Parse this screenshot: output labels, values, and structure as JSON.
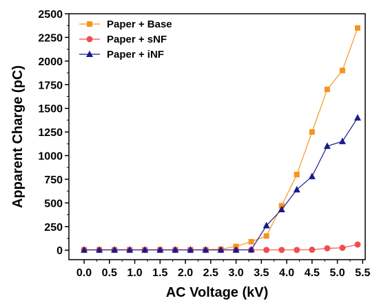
{
  "chart_data": {
    "type": "line",
    "title": "",
    "xlabel": "AC Voltage (kV)",
    "ylabel": "Apparent Charge (pC)",
    "xlim": [
      -0.3,
      5.55
    ],
    "ylim": [
      -100,
      2500
    ],
    "xticks": [
      "0.0",
      "0.5",
      "1.0",
      "1.5",
      "2.0",
      "2.5",
      "3.0",
      "3.5",
      "4.0",
      "4.5",
      "5.0",
      "5.5"
    ],
    "yticks": [
      "0",
      "250",
      "500",
      "750",
      "1000",
      "1250",
      "1500",
      "1750",
      "2000",
      "2250",
      "2500"
    ],
    "grid": false,
    "legend_position": "top-left",
    "x": [
      0.0,
      0.3,
      0.6,
      0.9,
      1.2,
      1.5,
      1.8,
      2.1,
      2.4,
      2.7,
      3.0,
      3.3,
      3.6,
      3.9,
      4.2,
      4.5,
      4.8,
      5.1,
      5.4
    ],
    "series": [
      {
        "name": "Paper + Base",
        "color": "#F7941D",
        "marker": "square",
        "values": [
          5,
          5,
          5,
          5,
          5,
          5,
          5,
          5,
          5,
          10,
          40,
          90,
          150,
          470,
          800,
          1250,
          1700,
          1900,
          2350
        ]
      },
      {
        "name": "Paper + sNF",
        "color": "#F04E4E",
        "marker": "circle",
        "values": [
          3,
          3,
          3,
          3,
          3,
          3,
          3,
          3,
          3,
          3,
          3,
          3,
          3,
          3,
          3,
          5,
          20,
          25,
          60
        ]
      },
      {
        "name": "Paper + iNF",
        "color": "#1A1A8C",
        "marker": "triangle",
        "values": [
          3,
          3,
          3,
          3,
          3,
          3,
          3,
          3,
          3,
          3,
          3,
          5,
          260,
          430,
          640,
          780,
          1100,
          1150,
          1400
        ]
      }
    ]
  }
}
